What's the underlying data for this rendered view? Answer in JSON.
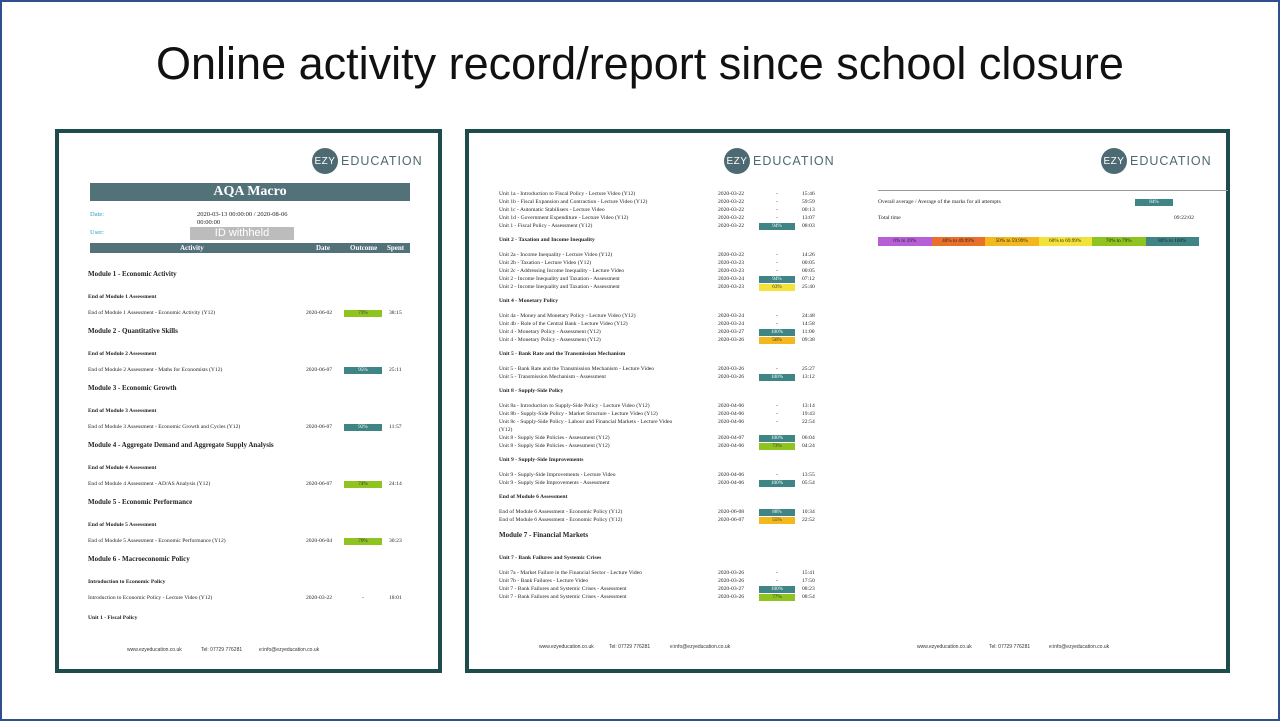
{
  "slide_title": "Online activity record/report since school closure",
  "logo": {
    "mark": "EZY",
    "text": "EDUCATION"
  },
  "left_doc": {
    "course_title": "AQA Macro",
    "date_label": "Date:",
    "date_value": "2020-03-13 00:00:00 / 2020-08-06 00:00:00",
    "user_label": "User:",
    "user_value": "ID withheld",
    "columns": [
      "Activity",
      "Date",
      "Outcome",
      "Spent"
    ],
    "modules": [
      {
        "title": "Module 1 - Economic Activity",
        "section": "End of Module 1 Assessment",
        "row": {
          "activity": "End of Module 1 Assessment - Economic Activity (Y12)",
          "date": "2020-06-02",
          "outcome": "73%",
          "spent": "38:15"
        }
      },
      {
        "title": "Module 2 - Quantitative Skills",
        "section": "End of Module 2 Assessment",
        "row": {
          "activity": "End of Module 2 Assessment - Maths for Economists (Y12)",
          "date": "2020-06-07",
          "outcome": "95%",
          "spent": "25:11"
        }
      },
      {
        "title": "Module 3 - Economic Growth",
        "section": "End of Module 3 Assessment",
        "row": {
          "activity": "End of Module 3 Assessment - Economic Growth and Cycles (Y12)",
          "date": "2020-06-07",
          "outcome": "92%",
          "spent": "11:57"
        }
      },
      {
        "title": "Module 4 - Aggregate Demand and Aggregate Supply Analysis",
        "section": "End of Module 4 Assessment",
        "row": {
          "activity": "End of Module 4 Assessment - AD/AS Analysis (Y12)",
          "date": "2020-06-07",
          "outcome": "74%",
          "spent": "24:14"
        }
      },
      {
        "title": "Module 5 - Economic Performance",
        "section": "End of Module 5 Assessment",
        "row": {
          "activity": "End of Module 5 Assessment - Economic Performance (Y12)",
          "date": "2020-06-04",
          "outcome": "70%",
          "spent": "30:23"
        }
      },
      {
        "title": "Module 6 - Macroeconomic Policy",
        "section": "Introduction to Economic Policy",
        "row": {
          "activity": "Introduction to Economic Policy - Lecture Video (Y12)",
          "date": "2020-03-22",
          "outcome": "-",
          "spent": "18:01"
        }
      }
    ],
    "trailing_section": "Unit 1 - Fiscal Policy"
  },
  "footer": {
    "web": "www.ezyeducation.co.uk",
    "tel": "Tel: 07729 776281",
    "email": "e:info@ezyeducation.co.uk"
  },
  "middle_doc": {
    "groups": [
      {
        "heading": "",
        "rows": [
          {
            "activity": "Unit 1a - Introduction to Fiscal Policy - Lecture Video (Y12)",
            "date": "2020-03-22",
            "outcome": "-",
            "spent": "15:46"
          },
          {
            "activity": "Unit 1b - Fiscal Expansion and Contraction - Lecture Video (Y12)",
            "date": "2020-03-22",
            "outcome": "-",
            "spent": "59:59"
          },
          {
            "activity": "Unit 1c - Automatic Stabilisers - Lecture Video",
            "date": "2020-03-22",
            "outcome": "-",
            "spent": "00:13"
          },
          {
            "activity": "Unit 1d - Government Expenditure - Lecture Video (Y12)",
            "date": "2020-03-22",
            "outcome": "-",
            "spent": "13:07"
          },
          {
            "activity": "Unit 1 - Fiscal Policy - Assessment (Y12)",
            "date": "2020-03-22",
            "outcome": "94%",
            "spent": "08:03"
          }
        ]
      },
      {
        "heading": "Unit 2 - Taxation and Income Inequality",
        "rows": [
          {
            "activity": "Unit 2a - Income Inequality - Lecture Video (Y12)",
            "date": "2020-03-22",
            "outcome": "-",
            "spent": "14:26"
          },
          {
            "activity": "Unit 2b - Taxation - Lecture Video (Y12)",
            "date": "2020-03-23",
            "outcome": "-",
            "spent": "00:05"
          },
          {
            "activity": "Unit 2c - Addressing Income Inequality - Lecture Video",
            "date": "2020-03-23",
            "outcome": "-",
            "spent": "00:05"
          },
          {
            "activity": "Unit 2 - Income Inequality and Taxation - Assessment",
            "date": "2020-03-24",
            "outcome": "94%",
            "spent": "07:12"
          },
          {
            "activity": "Unit 2 - Income Inequality and Taxation - Assessment",
            "date": "2020-03-23",
            "outcome": "63%",
            "spent": "25:40"
          }
        ]
      },
      {
        "heading": "Unit 4 - Monetary Policy",
        "rows": [
          {
            "activity": "Unit 4a - Money and Monetary Policy - Lecture Video (Y12)",
            "date": "2020-03-24",
            "outcome": "-",
            "spent": "24:48"
          },
          {
            "activity": "Unit 4b - Role of the Central Bank - Lecture Video (Y12)",
            "date": "2020-03-24",
            "outcome": "-",
            "spent": "14:58"
          },
          {
            "activity": "Unit 4 - Monetary Policy - Assessment (Y12)",
            "date": "2020-03-27",
            "outcome": "100%",
            "spent": "11:00"
          },
          {
            "activity": "Unit 4 - Monetary Policy - Assessment (Y12)",
            "date": "2020-03-26",
            "outcome": "56%",
            "spent": "09:38"
          }
        ]
      },
      {
        "heading": "Unit 5 - Bank Rate and the Transmission Mechanism",
        "rows": [
          {
            "activity": "Unit 5 - Bank Rate and the Transmission Mechanism - Lecture Video",
            "date": "2020-03-26",
            "outcome": "-",
            "spent": "25:27"
          },
          {
            "activity": "Unit 5 - Transmission Mechanism - Assessment",
            "date": "2020-03-26",
            "outcome": "100%",
            "spent": "13:12"
          }
        ]
      },
      {
        "heading": "Unit 8 - Supply-Side Policy",
        "rows": [
          {
            "activity": "Unit 8a - Introduction to Supply-Side Policy - Lecture Video (Y12)",
            "date": "2020-04-06",
            "outcome": "-",
            "spent": "13:14"
          },
          {
            "activity": "Unit 8b - Supply-Side Policy - Market Structure - Lecture Video (Y12)",
            "date": "2020-04-06",
            "outcome": "-",
            "spent": "19:43"
          },
          {
            "activity": "Unit 8c - Supply-Side Policy - Labour and Financial Markets - Lecture Video",
            "activity2": "(Y12)",
            "date": "2020-04-06",
            "outcome": "-",
            "spent": "22:54"
          },
          {
            "activity": "Unit 8 - Supply Side Policies - Assessment (Y12)",
            "date": "2020-04-07",
            "outcome": "100%",
            "spent": "06:04"
          },
          {
            "activity": "Unit 8 - Supply Side Policies - Assessment (Y12)",
            "date": "2020-04-06",
            "outcome": "73%",
            "spent": "04:24"
          }
        ]
      },
      {
        "heading": "Unit 9 - Supply-Side Improvements",
        "rows": [
          {
            "activity": "Unit 9 - Supply-Side Improvements - Lecture Video",
            "date": "2020-04-06",
            "outcome": "-",
            "spent": "13:55"
          },
          {
            "activity": "Unit 9 - Supply Side Improvements - Assessment",
            "date": "2020-04-06",
            "outcome": "100%",
            "spent": "05:54"
          }
        ]
      },
      {
        "heading": "End of Module 6 Assessment",
        "rows": [
          {
            "activity": "End of Module 6 Assessment - Economic Policy (Y12)",
            "date": "2020-06-08",
            "outcome": "88%",
            "spent": "10:34"
          },
          {
            "activity": "End of Module 6 Assessment - Economic Policy (Y12)",
            "date": "2020-06-07",
            "outcome": "55%",
            "spent": "22:52"
          }
        ]
      }
    ],
    "module7_title": "Module 7 - Financial Markets",
    "module7_section": "Unit 7 - Bank Failures and Systemic Crises",
    "module7_rows": [
      {
        "activity": "Unit 7a - Market Failure in the Financial Sector - Lecture Video",
        "date": "2020-03-26",
        "outcome": "-",
        "spent": "15:41"
      },
      {
        "activity": "Unit 7b - Bank Failures - Lecture Video",
        "date": "2020-03-26",
        "outcome": "-",
        "spent": "17:50"
      },
      {
        "activity": "Unit 7 - Bank Failures and Systemic Crises - Assessment",
        "date": "2020-03-27",
        "outcome": "100%",
        "spent": "08:23"
      },
      {
        "activity": "Unit 7 - Bank Failures and Systemic Crises - Assessment",
        "date": "2020-03-26",
        "outcome": "77%",
        "spent": "08:54"
      }
    ]
  },
  "summary": {
    "overall_label": "Overall average / Average of the marks for all attempts",
    "overall_value": "84%",
    "total_label": "Total time",
    "total_value": "09:22:02",
    "legend": [
      {
        "label": "0% to 39%",
        "color": "#b65fd8"
      },
      {
        "label": "40% to 49.99%",
        "color": "#e8702a"
      },
      {
        "label": "50% to 59.99%",
        "color": "#f2b81e"
      },
      {
        "label": "60% to 69.99%",
        "color": "#f4e13a"
      },
      {
        "label": "70% to 79%",
        "color": "#8fc31f"
      },
      {
        "label": "80% to 100%",
        "color": "#3f8585"
      }
    ]
  },
  "colors": {
    "band_80_100": "#3f8585",
    "band_70_79": "#8fc31f",
    "band_60_69": "#f4e13a",
    "band_50_59": "#f2b81e",
    "band_40_49": "#e8702a",
    "band_0_39": "#b65fd8",
    "panel_border": "#1e4b4b",
    "header_bar": "#527179"
  }
}
